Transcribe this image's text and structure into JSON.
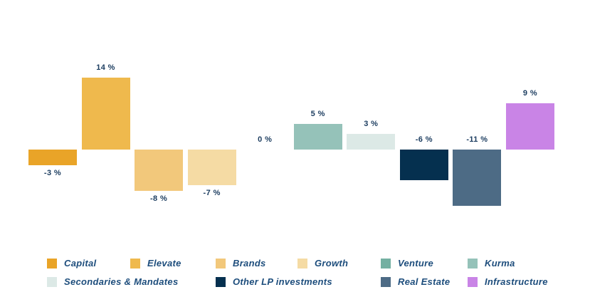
{
  "chart_data": {
    "type": "bar",
    "title": "",
    "xlabel": "",
    "ylabel": "",
    "categories": [
      "Capital",
      "Elevate",
      "Brands",
      "Growth",
      "Venture",
      "Kurma",
      "Secondaries & Mandates",
      "Other LP investments",
      "Real Estate",
      "Infrastructure"
    ],
    "values": [
      -3,
      14,
      -8,
      -7,
      0,
      5,
      3,
      -6,
      -11,
      9
    ],
    "value_labels": [
      "-3 %",
      "14 %",
      "-8 %",
      "-7 %",
      "0 %",
      "5 %",
      "3 %",
      "-6 %",
      "-11 %",
      "9 %"
    ],
    "label_positions": [
      "below",
      "above",
      "below",
      "below",
      "baseline",
      "above",
      "above",
      "baseline",
      "baseline",
      "above"
    ],
    "colors": [
      "#e9a428",
      "#efb94d",
      "#f2c87b",
      "#f5dba4",
      "#74b0a2",
      "#95c2b9",
      "#dce9e6",
      "#05304f",
      "#4d6b85",
      "#c984e6"
    ],
    "ylim": [
      -13,
      16
    ],
    "grid": false,
    "axes_visible": false,
    "legend_position": "bottom",
    "legend_rows": [
      [
        0,
        1,
        2,
        3,
        4,
        5
      ],
      [
        6,
        7,
        8,
        9
      ]
    ],
    "label_text_color": "#1b3c5f",
    "legend_text_color": "#1d4d7c",
    "background_color": "#ffffff"
  }
}
